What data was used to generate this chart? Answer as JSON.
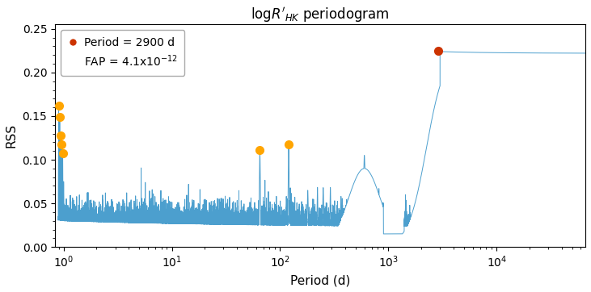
{
  "xlabel": "Period (d)",
  "ylabel": "RSS",
  "ylim": [
    0,
    0.255
  ],
  "line_color": "#4c9fce",
  "line_width": 0.7,
  "orange_dot_color": "#FFA500",
  "red_dot_color": "#cc3300",
  "red_dot_period": 2900,
  "red_dot_rss": 0.225,
  "orange_dots": [
    {
      "period": 0.9,
      "rss": 0.162
    },
    {
      "period": 0.92,
      "rss": 0.149
    },
    {
      "period": 0.94,
      "rss": 0.128
    },
    {
      "period": 0.96,
      "rss": 0.118
    },
    {
      "period": 0.98,
      "rss": 0.107
    },
    {
      "period": 65,
      "rss": 0.111
    },
    {
      "period": 120,
      "rss": 0.118
    }
  ],
  "legend_period": "Period = 2900 d",
  "legend_fap": "FAP = 4.1x10$^{-12}$",
  "legend_fontsize": 10,
  "background_color": "#ffffff",
  "figsize": [
    7.31,
    3.62
  ],
  "dpi": 100
}
